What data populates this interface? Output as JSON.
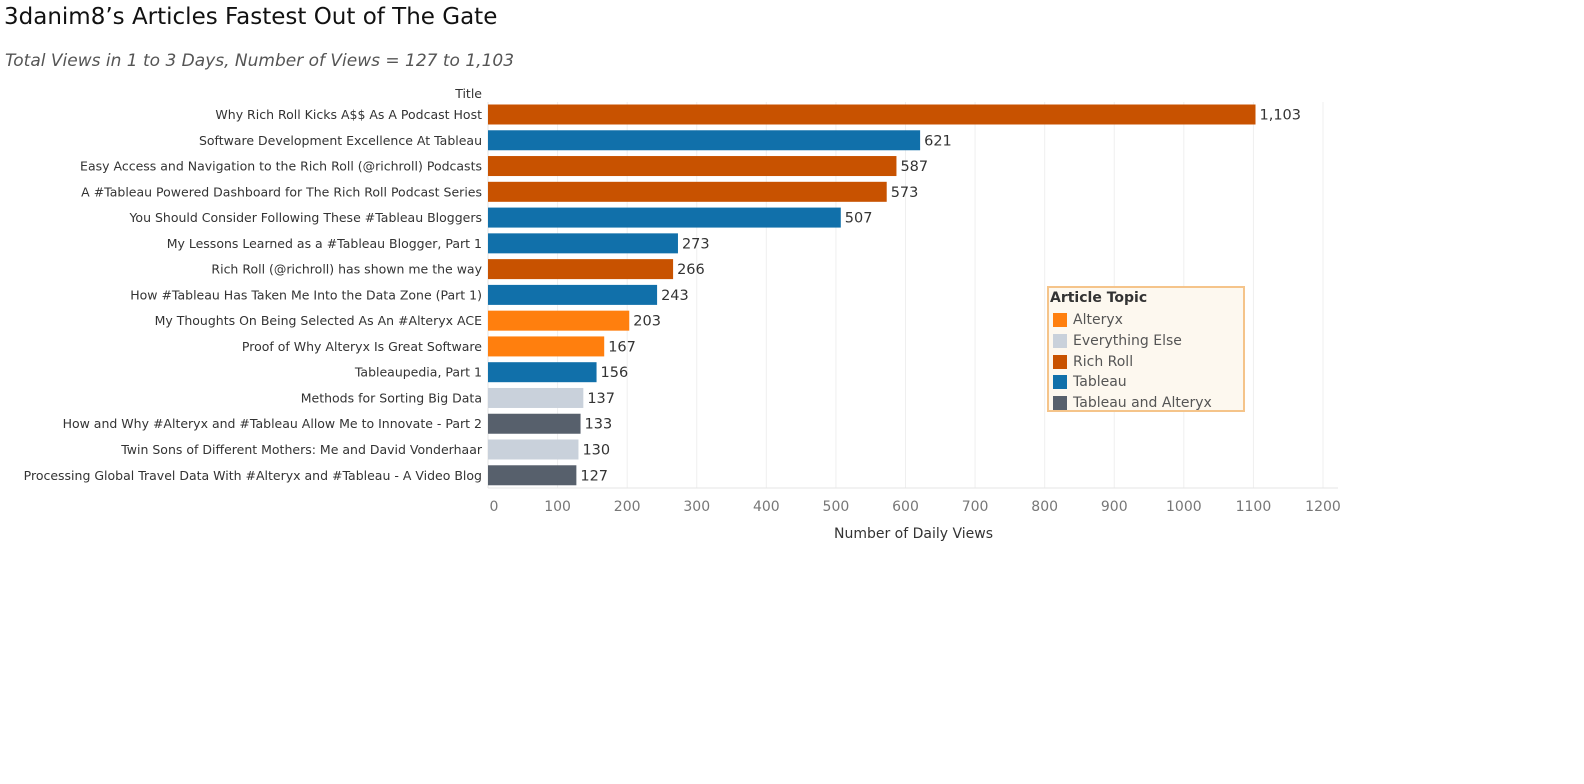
{
  "title": "3danim8’s Articles Fastest Out of The Gate",
  "subtitle": "Total Views in 1  to 3 Days, Number of Views = 127 to 1,103",
  "chart_data": {
    "type": "bar",
    "orientation": "horizontal",
    "title": "3danim8’s Articles Fastest Out of The Gate",
    "subtitle": "Total Views in 1  to 3 Days, Number of Views = 127 to 1,103",
    "category_header": "Title",
    "xlabel": "Number of Daily Views",
    "xlim": [
      0,
      1200
    ],
    "xticks": [
      0,
      100,
      200,
      300,
      400,
      500,
      600,
      700,
      800,
      900,
      1000,
      1100,
      1200
    ],
    "grid": "vertical",
    "legend_title": "Article Topic",
    "legend_position": "right",
    "topics": [
      {
        "name": "Alteryx",
        "color": "#ff7f0e"
      },
      {
        "name": "Everything Else",
        "color": "#c9d1db"
      },
      {
        "name": "Rich Roll",
        "color": "#c85200"
      },
      {
        "name": "Tableau",
        "color": "#1170aa"
      },
      {
        "name": "Tableau and Alteryx",
        "color": "#57606c"
      }
    ],
    "bars": [
      {
        "title": "Why Rich Roll Kicks A$$ As A Podcast Host",
        "value": 1103,
        "label": "1,103",
        "topic": "Rich Roll"
      },
      {
        "title": "Software Development Excellence At Tableau",
        "value": 621,
        "label": "621",
        "topic": "Tableau"
      },
      {
        "title": "Easy Access and Navigation to the Rich Roll (@richroll) Podcasts",
        "value": 587,
        "label": "587",
        "topic": "Rich Roll"
      },
      {
        "title": "A #Tableau Powered Dashboard for The Rich Roll Podcast Series",
        "value": 573,
        "label": "573",
        "topic": "Rich Roll"
      },
      {
        "title": "You Should Consider Following These #Tableau Bloggers",
        "value": 507,
        "label": "507",
        "topic": "Tableau"
      },
      {
        "title": "My Lessons Learned as a #Tableau Blogger, Part 1",
        "value": 273,
        "label": "273",
        "topic": "Tableau"
      },
      {
        "title": "Rich Roll (@richroll) has shown me the way",
        "value": 266,
        "label": "266",
        "topic": "Rich Roll"
      },
      {
        "title": "How #Tableau Has Taken Me Into the Data Zone (Part 1)",
        "value": 243,
        "label": "243",
        "topic": "Tableau"
      },
      {
        "title": "My Thoughts On Being Selected As An #Alteryx ACE",
        "value": 203,
        "label": "203",
        "topic": "Alteryx"
      },
      {
        "title": "Proof of Why Alteryx Is Great Software",
        "value": 167,
        "label": "167",
        "topic": "Alteryx"
      },
      {
        "title": "Tableaupedia, Part 1",
        "value": 156,
        "label": "156",
        "topic": "Tableau"
      },
      {
        "title": "Methods for Sorting Big Data",
        "value": 137,
        "label": "137",
        "topic": "Everything Else"
      },
      {
        "title": "How and Why #Alteryx and #Tableau Allow Me to Innovate - Part 2",
        "value": 133,
        "label": "133",
        "topic": "Tableau and Alteryx"
      },
      {
        "title": "Twin Sons of Different Mothers: Me and David Vonderhaar",
        "value": 130,
        "label": "130",
        "topic": "Everything Else"
      },
      {
        "title": "Processing Global Travel Data With #Alteryx and #Tableau - A Video Blog",
        "value": 127,
        "label": "127",
        "topic": "Tableau and Alteryx"
      }
    ]
  }
}
